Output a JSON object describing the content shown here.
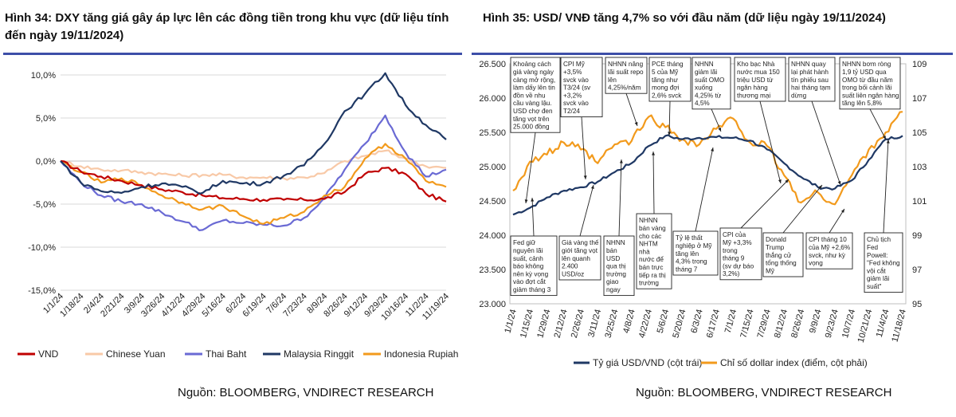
{
  "figure1": {
    "title": "Hình 34: DXY tăng giá gây áp lực lên các đồng tiền trong khu vực (dữ liệu tính đến ngày 19/11/2024)",
    "source": "Nguồn: BLOOMBERG, VNDIRECT RESEARCH"
  },
  "figure2": {
    "title": "Hình 35: USD/ VNĐ tăng 4,7% so với đầu năm (dữ liệu ngày 19/11/2024)",
    "source": "Nguồn:  BLOOMBERG, VNDIRECT RESEARCH"
  },
  "chart_data": [
    {
      "type": "line",
      "title": "",
      "x": [
        "1/1/24",
        "1/18/24",
        "2/4/24",
        "2/21/24",
        "3/9/24",
        "3/26/24",
        "4/12/24",
        "4/29/24",
        "5/16/24",
        "6/2/24",
        "6/19/24",
        "7/6/24",
        "7/23/24",
        "8/9/24",
        "8/26/24",
        "9/12/24",
        "9/29/24",
        "10/16/24",
        "11/2/24",
        "11/19/24"
      ],
      "ylim": [
        -15,
        10
      ],
      "yticks": [
        "10,0%",
        "5,0%",
        "0,0%",
        "-5,0%",
        "-10,0%",
        "-15,0%"
      ],
      "ytick_values": [
        10,
        5,
        0,
        -5,
        -10,
        -15
      ],
      "legend_position": "bottom",
      "grid": true,
      "series": [
        {
          "name": "VND",
          "color": "#c00000",
          "values": [
            0,
            -1.2,
            -1.8,
            -2.3,
            -2.8,
            -3.3,
            -3.6,
            -4.0,
            -4.3,
            -4.4,
            -4.5,
            -4.5,
            -4.5,
            -4.4,
            -3.6,
            -1.5,
            -0.8,
            -1.5,
            -3.8,
            -4.7
          ]
        },
        {
          "name": "Chinese Yuan",
          "color": "#f8c9a7",
          "values": [
            0,
            -0.6,
            -1.0,
            -1.1,
            -1.3,
            -1.5,
            -1.7,
            -1.6,
            -1.6,
            -1.9,
            -1.9,
            -2.0,
            -1.9,
            -1.4,
            0.0,
            0.6,
            1.2,
            0.3,
            -0.6,
            -0.8
          ]
        },
        {
          "name": "Thai Baht",
          "color": "#6a6ad4",
          "values": [
            0,
            -2.5,
            -4.0,
            -4.7,
            -5.0,
            -6.0,
            -7.0,
            -8.0,
            -6.9,
            -7.2,
            -7.4,
            -7.5,
            -6.6,
            -4.3,
            -1.0,
            2.0,
            5.3,
            1.0,
            -1.8,
            -1.0
          ]
        },
        {
          "name": "Malaysia Ringgit",
          "color": "#1f3864",
          "values": [
            0,
            -2.5,
            -3.5,
            -3.7,
            -3.0,
            -2.6,
            -3.0,
            -3.7,
            -2.3,
            -2.6,
            -2.6,
            -1.7,
            -0.5,
            2.0,
            5.8,
            7.8,
            10.2,
            6.5,
            4.2,
            2.5
          ]
        },
        {
          "name": "Indonesia Rupiah",
          "color": "#f29a1c",
          "values": [
            0,
            -1.3,
            -2.5,
            -2.0,
            -2.8,
            -4.0,
            -4.8,
            -5.6,
            -5.2,
            -6.4,
            -7.3,
            -6.6,
            -5.9,
            -4.0,
            -3.0,
            0.3,
            2.0,
            0.3,
            -2.3,
            -3.0
          ]
        }
      ]
    },
    {
      "type": "line",
      "title": "",
      "x": [
        "1/1/24",
        "1/15/24",
        "1/29/24",
        "2/12/24",
        "2/26/24",
        "3/11/24",
        "3/25/24",
        "4/8/24",
        "4/22/24",
        "5/6/24",
        "5/20/24",
        "6/3/24",
        "6/17/24",
        "7/1/24",
        "7/15/24",
        "7/29/24",
        "8/12/24",
        "8/26/24",
        "9/9/24",
        "9/23/24",
        "10/7/24",
        "10/21/24",
        "11/4/24",
        "11/18/24"
      ],
      "y_left": {
        "lim": [
          23000,
          26500
        ],
        "ticks": [
          "26.500",
          "26.000",
          "25.500",
          "25.000",
          "24.500",
          "24.000",
          "23.500",
          "23.000"
        ],
        "tick_values": [
          26500,
          26000,
          25500,
          25000,
          24500,
          24000,
          23500,
          23000
        ]
      },
      "y_right": {
        "lim": [
          95,
          109
        ],
        "ticks": [
          "109",
          "107",
          "105",
          "103",
          "101",
          "99",
          "97",
          "95"
        ],
        "tick_values": [
          109,
          107,
          105,
          103,
          101,
          99,
          97,
          95
        ]
      },
      "legend_position": "bottom",
      "series": [
        {
          "name": "Tỷ giá USD/VND (cột trái)",
          "axis": "left",
          "color": "#1f3864",
          "values": [
            24300,
            24400,
            24550,
            24650,
            24700,
            24780,
            24920,
            25050,
            25300,
            25450,
            25400,
            25420,
            25430,
            25420,
            25380,
            25250,
            25050,
            24850,
            24700,
            24680,
            24800,
            25100,
            25400,
            25450
          ]
        },
        {
          "name": "Chỉ số dollar index (điểm, cột phải)",
          "axis": "right",
          "color": "#f29a1c",
          "values": [
            101.6,
            103.3,
            103.7,
            104.4,
            104.0,
            103.2,
            104.3,
            104.5,
            105.9,
            105.3,
            104.6,
            104.3,
            105.2,
            105.8,
            104.4,
            104.2,
            102.5,
            100.9,
            101.5,
            100.8,
            102.5,
            104.0,
            105.0,
            106.2
          ]
        }
      ],
      "annotations_top": [
        {
          "text": [
            "Khoảng cách",
            "giá vàng ngày",
            "càng mở rộng,",
            "làm dấy lên tin",
            "đồn về nhu",
            "cầu vàng lậu.",
            "USD chợ đen",
            "tăng vọt trên",
            "25.000 đồng"
          ]
        },
        {
          "text": [
            "CPI Mỹ",
            "+3,5%",
            "svck vào",
            "T3/24 (sv",
            "+3,2%",
            "svck vào",
            "T2/24"
          ]
        },
        {
          "text": [
            "NHNN nâng",
            "lãi suất repo",
            "lên",
            "4,25%/năm"
          ]
        },
        {
          "text": [
            "PCE tháng",
            "5 của Mỹ",
            "tăng như",
            "mong đợi",
            "2,6% svck"
          ]
        },
        {
          "text": [
            "NHNN",
            "giảm lãi",
            "suất OMO",
            "xuống",
            "4,25% từ",
            "4,5%"
          ]
        },
        {
          "text": [
            "Kho bạc Nhà",
            "nước mua 150",
            "triệu USD từ",
            "ngân hàng",
            "thương mại"
          ]
        },
        {
          "text": [
            "NHNN quay",
            "lại phát hành",
            "tín phiếu sau",
            "hai tháng tạm",
            "dừng"
          ]
        },
        {
          "text": [
            "NHNN bơm ròng",
            "1,9 tỷ USD qua",
            "OMO từ đầu năm",
            "trong bối cảnh lãi",
            "suất liên ngân hàng",
            "tăng lên 5,8%"
          ]
        }
      ],
      "annotations_bottom": [
        {
          "text": [
            "Fed giữ",
            "nguyên lãi",
            "suất, cảnh",
            "báo không",
            "nên kỳ vọng",
            "vào đợt cắt",
            "giảm tháng 3"
          ]
        },
        {
          "text": [
            "Giá vàng thế",
            "giới tăng vọt",
            "lên quanh",
            "2.400",
            "USD/oz"
          ]
        },
        {
          "text": [
            "NHNN",
            "bán",
            "USD",
            "qua thị",
            "trường",
            "giao",
            "ngay"
          ]
        },
        {
          "text": [
            "NHNN",
            "bán vàng",
            "cho các",
            "NHTM",
            "nhà",
            "nước để",
            "bán trực",
            "tiếp ra thị",
            "trường"
          ]
        },
        {
          "text": [
            "Tỷ lệ thất",
            "nghiệp ở Mỹ",
            "tăng lên",
            "4,3% trong",
            "tháng 7"
          ]
        },
        {
          "text": [
            "CPI của",
            "Mỹ +3,3%",
            "trong",
            "tháng 9",
            "(sv dự báo",
            "3,2%)"
          ]
        },
        {
          "text": [
            "Donald",
            "Trump",
            "thắng cử",
            "tổng thống",
            "Mỹ"
          ]
        },
        {
          "text": [
            "CPI tháng 10",
            "của Mỹ +2,6%",
            "svck, như kỳ",
            "vọng"
          ]
        },
        {
          "text": [
            "Chủ tịch",
            "Fed",
            "Powell:",
            "\"Fed không",
            "vội cắt",
            "giảm lãi",
            "suất\""
          ]
        }
      ]
    }
  ]
}
